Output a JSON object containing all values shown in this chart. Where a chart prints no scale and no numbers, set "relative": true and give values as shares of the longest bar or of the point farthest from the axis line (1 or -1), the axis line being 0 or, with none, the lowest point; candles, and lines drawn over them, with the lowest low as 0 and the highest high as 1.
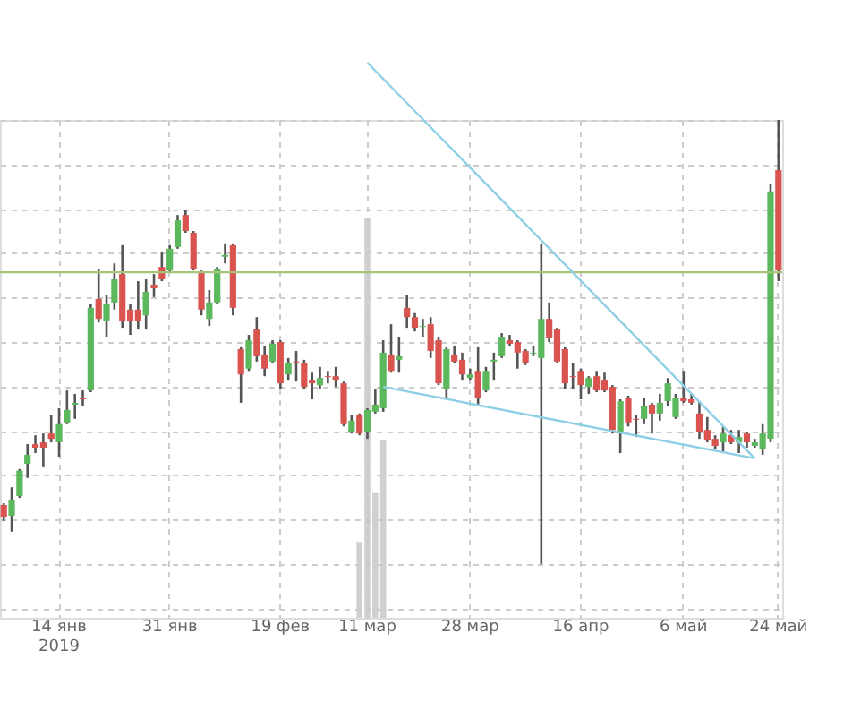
{
  "chart_data": {
    "type": "candlestick",
    "relative": true,
    "grid": true,
    "colors": [
      "#d9534f",
      "#5cb85c",
      "#5cb85c",
      "#5cb85c",
      "#d9534f",
      "#d9534f",
      "#d9534f",
      "#5cb85c",
      "#5cb85c",
      "#5cb85c",
      "#d9534f",
      "#5cb85c",
      "#d9534f",
      "#5cb85c",
      "#5cb85c",
      "#d9534f",
      "#d9534f",
      "#d9534f",
      "#5cb85c",
      "#d9534f",
      "#d9534f",
      "#5cb85c",
      "#5cb85c",
      "#d9534f",
      "#d9534f",
      "#d9534f",
      "#5cb85c",
      "#5cb85c",
      "#5cb85c",
      "#d9534f",
      "#d9534f",
      "#5cb85c",
      "#d9534f",
      "#d9534f",
      "#5cb85c",
      "#d9534f",
      "#5cb85c",
      "#d9534f",
      "#d9534f",
      "#d9534f",
      "#5cb85c",
      "#d9534f",
      "#d9534f",
      "#d9534f",
      "#5cb85c",
      "#d9534f",
      "#5cb85c",
      "#5cb85c",
      "#5cb85c",
      "#d9534f",
      "#5cb85c",
      "#d9534f",
      "#d9534f",
      "#5cb85c",
      "#d9534f",
      "#d9534f",
      "#5cb85c",
      "#d9534f",
      "#d9534f",
      "#5cb85c",
      "#d9534f",
      "#5cb85c",
      "#5cb85c",
      "#5cb85c",
      "#d9534f",
      "#d9534f",
      "#d9534f",
      "#5cb85c",
      "#5cb85c",
      "#d9534f",
      "#d9534f",
      "#d9534f",
      "#d9534f",
      "#d9534f",
      "#5cb85c",
      "#d9534f",
      "#d9534f",
      "#d9534f",
      "#5cb85c",
      "#d9534f",
      "#d9534f",
      "#5cb85c",
      "#d9534f",
      "#5cb85c",
      "#5cb85c",
      "#5cb85c",
      "#d9534f",
      "#d9534f",
      "#d9534f",
      "#d9534f",
      "#d9534f",
      "#5cb85c",
      "#d9534f",
      "#5cb85c",
      "#d9534f",
      "#5cb85c",
      "#5cb85c",
      "#5cb85c",
      "#d9534f"
    ],
    "categories": [
      null,
      null,
      null,
      null,
      null,
      null,
      null,
      "14 янв\n2019",
      null,
      null,
      null,
      null,
      null,
      null,
      null,
      null,
      null,
      null,
      null,
      null,
      null,
      "31 янв",
      null,
      null,
      null,
      null,
      null,
      null,
      null,
      null,
      null,
      null,
      null,
      null,
      null,
      "19 фев",
      null,
      null,
      null,
      null,
      null,
      null,
      null,
      null,
      null,
      null,
      "11 мар",
      null,
      null,
      null,
      null,
      null,
      null,
      null,
      null,
      null,
      null,
      null,
      null,
      "28 мар",
      null,
      null,
      null,
      null,
      null,
      null,
      null,
      null,
      null,
      null,
      null,
      null,
      null,
      "16 апр",
      null,
      null,
      null,
      null,
      null,
      null,
      null,
      null,
      null,
      null,
      null,
      null,
      "6 май",
      null,
      null,
      null,
      null,
      null,
      null,
      null,
      null,
      null,
      null,
      null,
      "24 май"
    ],
    "ohlc": [
      [
        0.133,
        0.137,
        0.097,
        0.105
      ],
      [
        0.109,
        0.173,
        0.073,
        0.145
      ],
      [
        0.153,
        0.214,
        0.149,
        0.21
      ],
      [
        0.226,
        0.27,
        0.194,
        0.246
      ],
      [
        0.27,
        0.29,
        0.25,
        0.262
      ],
      [
        0.274,
        0.294,
        0.218,
        0.262
      ],
      [
        0.294,
        0.335,
        0.274,
        0.282
      ],
      [
        0.274,
        0.351,
        0.242,
        0.315
      ],
      [
        0.319,
        0.391,
        0.315,
        0.347
      ],
      [
        0.359,
        0.383,
        0.327,
        0.363
      ],
      [
        0.375,
        0.391,
        0.355,
        0.371
      ],
      [
        0.391,
        0.585,
        0.387,
        0.577
      ],
      [
        0.597,
        0.665,
        0.544,
        0.552
      ],
      [
        0.548,
        0.605,
        0.512,
        0.585
      ],
      [
        0.589,
        0.677,
        0.573,
        0.641
      ],
      [
        0.653,
        0.718,
        0.532,
        0.548
      ],
      [
        0.573,
        0.585,
        0.516,
        0.548
      ],
      [
        0.573,
        0.637,
        0.528,
        0.548
      ],
      [
        0.56,
        0.641,
        0.528,
        0.613
      ],
      [
        0.629,
        0.653,
        0.601,
        0.621
      ],
      [
        0.669,
        0.702,
        0.637,
        0.641
      ],
      [
        0.661,
        0.718,
        0.657,
        0.71
      ],
      [
        0.714,
        0.786,
        0.71,
        0.774
      ],
      [
        0.786,
        0.798,
        0.746,
        0.75
      ],
      [
        0.746,
        0.75,
        0.661,
        0.665
      ],
      [
        0.657,
        0.661,
        0.56,
        0.573
      ],
      [
        0.552,
        0.617,
        0.536,
        0.589
      ],
      [
        0.589,
        0.669,
        0.585,
        0.665
      ],
      [
        0.692,
        0.722,
        0.677,
        0.696
      ],
      [
        0.718,
        0.722,
        0.56,
        0.577
      ],
      [
        0.484,
        0.488,
        0.363,
        0.427
      ],
      [
        0.44,
        0.516,
        0.435,
        0.504
      ],
      [
        0.528,
        0.556,
        0.456,
        0.468
      ],
      [
        0.472,
        0.492,
        0.423,
        0.44
      ],
      [
        0.456,
        0.504,
        0.452,
        0.496
      ],
      [
        0.5,
        0.504,
        0.395,
        0.407
      ],
      [
        0.427,
        0.464,
        0.415,
        0.452
      ],
      [
        0.456,
        0.48,
        0.411,
        0.454
      ],
      [
        0.452,
        0.46,
        0.395,
        0.399
      ],
      [
        0.415,
        0.431,
        0.371,
        0.407
      ],
      [
        0.403,
        0.444,
        0.395,
        0.419
      ],
      [
        0.423,
        0.435,
        0.407,
        0.421
      ],
      [
        0.423,
        0.444,
        0.399,
        0.415
      ],
      [
        0.407,
        0.411,
        0.31,
        0.315
      ],
      [
        0.298,
        0.335,
        0.294,
        0.323
      ],
      [
        0.335,
        0.339,
        0.29,
        0.294
      ],
      [
        0.298,
        0.351,
        0.282,
        0.347
      ],
      [
        0.343,
        0.395,
        0.339,
        0.359
      ],
      [
        0.351,
        0.504,
        0.343,
        0.476
      ],
      [
        0.472,
        0.54,
        0.431,
        0.435
      ],
      [
        0.46,
        0.512,
        0.431,
        0.468
      ],
      [
        0.577,
        0.605,
        0.532,
        0.556
      ],
      [
        0.556,
        0.565,
        0.524,
        0.532
      ],
      [
        0.534,
        0.552,
        0.512,
        0.536
      ],
      [
        0.54,
        0.556,
        0.464,
        0.48
      ],
      [
        0.504,
        0.512,
        0.403,
        0.407
      ],
      [
        0.395,
        0.488,
        0.375,
        0.484
      ],
      [
        0.472,
        0.492,
        0.452,
        0.456
      ],
      [
        0.46,
        0.476,
        0.415,
        0.427
      ],
      [
        0.419,
        0.44,
        0.415,
        0.427
      ],
      [
        0.435,
        0.488,
        0.355,
        0.375
      ],
      [
        0.391,
        0.444,
        0.387,
        0.435
      ],
      [
        0.456,
        0.476,
        0.415,
        0.46
      ],
      [
        0.468,
        0.52,
        0.464,
        0.512
      ],
      [
        0.504,
        0.516,
        0.492,
        0.496
      ],
      [
        0.5,
        0.504,
        0.44,
        0.476
      ],
      [
        0.48,
        0.484,
        0.448,
        0.452
      ],
      [
        0.474,
        0.492,
        0.468,
        0.476
      ],
      [
        0.464,
        0.722,
        0.0,
        0.552
      ],
      [
        0.552,
        0.589,
        0.5,
        0.508
      ],
      [
        0.528,
        0.532,
        0.452,
        0.456
      ],
      [
        0.484,
        0.488,
        0.395,
        0.407
      ],
      [
        0.423,
        0.452,
        0.395,
        0.421
      ],
      [
        0.435,
        0.44,
        0.371,
        0.403
      ],
      [
        0.399,
        0.423,
        0.383,
        0.419
      ],
      [
        0.423,
        0.435,
        0.387,
        0.391
      ],
      [
        0.415,
        0.431,
        0.387,
        0.391
      ],
      [
        0.399,
        0.403,
        0.294,
        0.302
      ],
      [
        0.294,
        0.371,
        0.25,
        0.367
      ],
      [
        0.375,
        0.379,
        0.31,
        0.319
      ],
      [
        0.327,
        0.335,
        0.286,
        0.325
      ],
      [
        0.327,
        0.375,
        0.315,
        0.355
      ],
      [
        0.359,
        0.363,
        0.294,
        0.339
      ],
      [
        0.339,
        0.383,
        0.323,
        0.363
      ],
      [
        0.367,
        0.419,
        0.355,
        0.407
      ],
      [
        0.331,
        0.383,
        0.327,
        0.375
      ],
      [
        0.375,
        0.435,
        0.363,
        0.367
      ],
      [
        0.371,
        0.383,
        0.359,
        0.363
      ],
      [
        0.339,
        0.367,
        0.282,
        0.298
      ],
      [
        0.302,
        0.331,
        0.274,
        0.278
      ],
      [
        0.282,
        0.29,
        0.258,
        0.266
      ],
      [
        0.274,
        0.31,
        0.25,
        0.294
      ],
      [
        0.29,
        0.302,
        0.27,
        0.274
      ],
      [
        0.274,
        0.302,
        0.25,
        0.286
      ],
      [
        0.294,
        0.298,
        0.262,
        0.274
      ],
      [
        0.266,
        0.282,
        0.262,
        0.274
      ],
      [
        0.258,
        0.315,
        0.246,
        0.294
      ],
      [
        0.282,
        0.855,
        0.274,
        0.839
      ],
      [
        0.887,
        1.0,
        0.637,
        0.661
      ]
    ],
    "series": [
      {
        "type": "bar",
        "color": "#c8c8c8",
        "values": [
          null,
          null,
          null,
          null,
          null,
          null,
          null,
          null,
          null,
          null,
          null,
          null,
          null,
          null,
          null,
          null,
          null,
          null,
          null,
          null,
          null,
          null,
          null,
          null,
          null,
          null,
          null,
          null,
          null,
          null,
          null,
          null,
          null,
          null,
          null,
          null,
          null,
          null,
          null,
          null,
          null,
          null,
          null,
          null,
          null,
          0.05,
          0.78,
          0.16,
          0.28,
          null,
          null,
          null,
          null,
          null,
          null,
          null,
          null,
          null,
          null,
          null,
          null,
          null,
          null,
          null,
          null,
          null,
          null,
          null,
          null,
          null,
          null,
          null,
          null,
          null,
          null,
          null,
          null,
          null,
          null,
          null,
          null,
          null,
          null,
          null,
          null,
          null,
          null,
          null,
          null,
          null,
          null,
          null,
          null,
          null,
          null,
          null,
          null,
          null,
          null
        ]
      },
      {
        "type": "line",
        "color": "#8ecfe6",
        "values": [
          null,
          null,
          null,
          null,
          null,
          null,
          null,
          null,
          null,
          null,
          null,
          null,
          null,
          null,
          null,
          null,
          null,
          null,
          null,
          null,
          null,
          null,
          null,
          null,
          null,
          null,
          null,
          null,
          null,
          null,
          null,
          null,
          null,
          null,
          null,
          null,
          null,
          null,
          null,
          null,
          null,
          null,
          null,
          null,
          null,
          null,
          1.129,
          null,
          null,
          null,
          null,
          null,
          null,
          null,
          null,
          null,
          null,
          null,
          null,
          null,
          null,
          null,
          null,
          null,
          null,
          null,
          null,
          null,
          null,
          null,
          null,
          null,
          null,
          null,
          null,
          null,
          null,
          null,
          null,
          null,
          null,
          null,
          null,
          null,
          null,
          null,
          null,
          null,
          null,
          null,
          null,
          null,
          null,
          null,
          null,
          0.238,
          null,
          null,
          null
        ]
      },
      {
        "type": "line",
        "color": "#8ecfe6",
        "values": [
          null,
          null,
          null,
          null,
          null,
          null,
          null,
          null,
          null,
          null,
          null,
          null,
          null,
          null,
          null,
          null,
          null,
          null,
          null,
          null,
          null,
          null,
          null,
          null,
          null,
          null,
          null,
          null,
          null,
          null,
          null,
          null,
          null,
          null,
          null,
          null,
          null,
          null,
          null,
          null,
          null,
          null,
          null,
          null,
          null,
          null,
          null,
          null,
          0.399,
          null,
          null,
          null,
          null,
          null,
          null,
          null,
          null,
          null,
          null,
          null,
          null,
          null,
          null,
          null,
          null,
          null,
          null,
          null,
          null,
          null,
          null,
          null,
          null,
          null,
          null,
          null,
          null,
          null,
          null,
          null,
          null,
          null,
          null,
          null,
          null,
          null,
          null,
          null,
          null,
          null,
          null,
          null,
          null,
          null,
          null,
          0.238,
          null,
          null,
          null
        ]
      }
    ],
    "ref_lines": [
      {
        "axis": "y",
        "value": 0.657,
        "color": "#a8c47a"
      }
    ]
  }
}
